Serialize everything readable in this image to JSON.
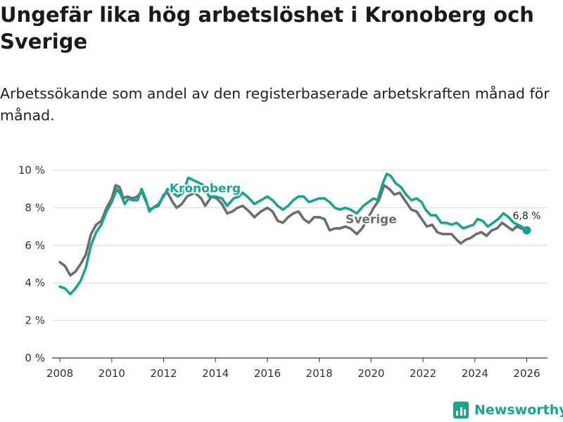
{
  "title": "Ungefär lika hög arbetslöshet i Kronoberg och Sverige",
  "subtitle": "Arbetssökande som andel av den registerbaserade arbetskraften månad för månad.",
  "brand": {
    "name": "Newsworthy",
    "icon": "bar-chart-logo-icon",
    "color": "#1aa391"
  },
  "chart_data": {
    "type": "line",
    "xlabel": "",
    "ylabel": "",
    "xlim": [
      2007.7,
      2026.8
    ],
    "ylim": [
      0,
      10
    ],
    "grid": true,
    "x_ticks": [
      2008,
      2010,
      2012,
      2014,
      2016,
      2018,
      2020,
      2022,
      2024,
      2026
    ],
    "x_tick_labels": [
      "2008",
      "2010",
      "2012",
      "2014",
      "2016",
      "2018",
      "2020",
      "2022",
      "2024",
      "2026"
    ],
    "y_ticks": [
      0,
      2,
      4,
      6,
      8,
      10
    ],
    "y_tick_labels": [
      "0 %",
      "2 %",
      "4 %",
      "6 %",
      "8 %",
      "10 %"
    ],
    "end_label": "6,8 %",
    "series": [
      {
        "name": "Kronoberg",
        "color": "#1aa391",
        "points": [
          [
            2008.0,
            3.8
          ],
          [
            2008.2,
            3.7
          ],
          [
            2008.4,
            3.4
          ],
          [
            2008.6,
            3.7
          ],
          [
            2008.8,
            4.1
          ],
          [
            2009.0,
            4.8
          ],
          [
            2009.2,
            6.0
          ],
          [
            2009.4,
            6.7
          ],
          [
            2009.6,
            7.1
          ],
          [
            2009.8,
            7.8
          ],
          [
            2010.0,
            8.3
          ],
          [
            2010.2,
            9.0
          ],
          [
            2010.35,
            8.7
          ],
          [
            2010.5,
            8.2
          ],
          [
            2010.65,
            8.5
          ],
          [
            2010.8,
            8.4
          ],
          [
            2011.0,
            8.4
          ],
          [
            2011.15,
            9.0
          ],
          [
            2011.3,
            8.5
          ],
          [
            2011.45,
            7.8
          ],
          [
            2011.6,
            8.0
          ],
          [
            2011.8,
            8.2
          ],
          [
            2012.0,
            8.6
          ],
          [
            2012.15,
            9.0
          ],
          [
            2012.35,
            8.8
          ],
          [
            2012.55,
            8.6
          ],
          [
            2012.75,
            8.8
          ],
          [
            2012.95,
            9.6
          ],
          [
            2013.25,
            9.4
          ],
          [
            2013.55,
            9.2
          ],
          [
            2013.75,
            8.6
          ],
          [
            2014.0,
            8.6
          ],
          [
            2014.25,
            8.5
          ],
          [
            2014.45,
            8.1
          ],
          [
            2014.7,
            8.5
          ],
          [
            2014.9,
            8.6
          ],
          [
            2015.05,
            8.8
          ],
          [
            2015.3,
            8.5
          ],
          [
            2015.5,
            8.2
          ],
          [
            2015.75,
            8.4
          ],
          [
            2016.0,
            8.6
          ],
          [
            2016.2,
            8.4
          ],
          [
            2016.4,
            8.1
          ],
          [
            2016.6,
            7.9
          ],
          [
            2016.8,
            8.1
          ],
          [
            2017.0,
            8.4
          ],
          [
            2017.2,
            8.6
          ],
          [
            2017.4,
            8.6
          ],
          [
            2017.6,
            8.3
          ],
          [
            2017.8,
            8.4
          ],
          [
            2018.0,
            8.5
          ],
          [
            2018.2,
            8.5
          ],
          [
            2018.4,
            8.3
          ],
          [
            2018.6,
            8.0
          ],
          [
            2018.8,
            7.9
          ],
          [
            2019.0,
            8.0
          ],
          [
            2019.2,
            7.9
          ],
          [
            2019.45,
            7.7
          ],
          [
            2019.7,
            8.1
          ],
          [
            2019.9,
            8.3
          ],
          [
            2020.1,
            8.5
          ],
          [
            2020.25,
            8.4
          ],
          [
            2020.45,
            9.3
          ],
          [
            2020.6,
            9.8
          ],
          [
            2020.75,
            9.7
          ],
          [
            2020.95,
            9.3
          ],
          [
            2021.15,
            9.1
          ],
          [
            2021.35,
            8.7
          ],
          [
            2021.55,
            8.4
          ],
          [
            2021.75,
            8.5
          ],
          [
            2021.95,
            8.3
          ],
          [
            2022.1,
            7.9
          ],
          [
            2022.3,
            7.6
          ],
          [
            2022.5,
            7.6
          ],
          [
            2022.7,
            7.2
          ],
          [
            2022.9,
            7.2
          ],
          [
            2023.1,
            7.1
          ],
          [
            2023.3,
            7.2
          ],
          [
            2023.55,
            6.9
          ],
          [
            2023.75,
            7.0
          ],
          [
            2023.95,
            7.1
          ],
          [
            2024.1,
            7.4
          ],
          [
            2024.3,
            7.3
          ],
          [
            2024.5,
            7.0
          ],
          [
            2024.7,
            7.2
          ],
          [
            2024.9,
            7.4
          ],
          [
            2025.1,
            7.7
          ],
          [
            2025.3,
            7.5
          ],
          [
            2025.5,
            7.2
          ],
          [
            2025.65,
            7.1
          ],
          [
            2025.8,
            7.0
          ],
          [
            2026.0,
            6.8
          ]
        ]
      },
      {
        "name": "Sverige",
        "color": "#6d6d70",
        "points": [
          [
            2008.0,
            5.1
          ],
          [
            2008.2,
            4.9
          ],
          [
            2008.4,
            4.4
          ],
          [
            2008.6,
            4.6
          ],
          [
            2008.8,
            5.0
          ],
          [
            2009.0,
            5.5
          ],
          [
            2009.2,
            6.6
          ],
          [
            2009.4,
            7.1
          ],
          [
            2009.6,
            7.3
          ],
          [
            2009.8,
            8.0
          ],
          [
            2010.0,
            8.5
          ],
          [
            2010.15,
            9.2
          ],
          [
            2010.3,
            9.1
          ],
          [
            2010.45,
            8.5
          ],
          [
            2010.6,
            8.6
          ],
          [
            2010.8,
            8.5
          ],
          [
            2011.0,
            8.6
          ],
          [
            2011.15,
            8.9
          ],
          [
            2011.3,
            8.4
          ],
          [
            2011.45,
            7.9
          ],
          [
            2011.6,
            8.0
          ],
          [
            2011.8,
            8.1
          ],
          [
            2012.0,
            8.7
          ],
          [
            2012.15,
            8.8
          ],
          [
            2012.35,
            8.3
          ],
          [
            2012.5,
            8.0
          ],
          [
            2012.7,
            8.2
          ],
          [
            2012.9,
            8.6
          ],
          [
            2013.2,
            8.8
          ],
          [
            2013.45,
            8.5
          ],
          [
            2013.6,
            8.1
          ],
          [
            2013.85,
            8.6
          ],
          [
            2014.05,
            8.5
          ],
          [
            2014.25,
            8.2
          ],
          [
            2014.45,
            7.7
          ],
          [
            2014.65,
            7.8
          ],
          [
            2014.85,
            8.0
          ],
          [
            2015.05,
            8.1
          ],
          [
            2015.3,
            7.8
          ],
          [
            2015.5,
            7.5
          ],
          [
            2015.75,
            7.8
          ],
          [
            2016.0,
            8.0
          ],
          [
            2016.2,
            7.8
          ],
          [
            2016.4,
            7.3
          ],
          [
            2016.6,
            7.2
          ],
          [
            2016.8,
            7.5
          ],
          [
            2017.0,
            7.7
          ],
          [
            2017.2,
            7.8
          ],
          [
            2017.4,
            7.4
          ],
          [
            2017.6,
            7.2
          ],
          [
            2017.8,
            7.5
          ],
          [
            2018.0,
            7.5
          ],
          [
            2018.2,
            7.4
          ],
          [
            2018.4,
            6.8
          ],
          [
            2018.6,
            6.9
          ],
          [
            2018.8,
            6.9
          ],
          [
            2019.0,
            7.0
          ],
          [
            2019.2,
            6.9
          ],
          [
            2019.45,
            6.6
          ],
          [
            2019.65,
            6.9
          ],
          [
            2019.9,
            7.5
          ],
          [
            2020.1,
            8.0
          ],
          [
            2020.3,
            8.4
          ],
          [
            2020.5,
            9.2
          ],
          [
            2020.7,
            9.0
          ],
          [
            2020.9,
            8.7
          ],
          [
            2021.1,
            8.8
          ],
          [
            2021.3,
            8.4
          ],
          [
            2021.55,
            7.9
          ],
          [
            2021.75,
            7.8
          ],
          [
            2021.95,
            7.4
          ],
          [
            2022.15,
            7.0
          ],
          [
            2022.35,
            7.1
          ],
          [
            2022.55,
            6.7
          ],
          [
            2022.75,
            6.6
          ],
          [
            2022.95,
            6.6
          ],
          [
            2023.1,
            6.6
          ],
          [
            2023.3,
            6.3
          ],
          [
            2023.45,
            6.1
          ],
          [
            2023.65,
            6.3
          ],
          [
            2023.85,
            6.4
          ],
          [
            2024.05,
            6.6
          ],
          [
            2024.25,
            6.7
          ],
          [
            2024.45,
            6.5
          ],
          [
            2024.65,
            6.8
          ],
          [
            2024.85,
            6.9
          ],
          [
            2025.05,
            7.2
          ],
          [
            2025.25,
            7.0
          ],
          [
            2025.45,
            6.8
          ],
          [
            2025.6,
            7.0
          ],
          [
            2025.8,
            6.9
          ],
          [
            2026.0,
            6.8
          ]
        ]
      }
    ]
  }
}
